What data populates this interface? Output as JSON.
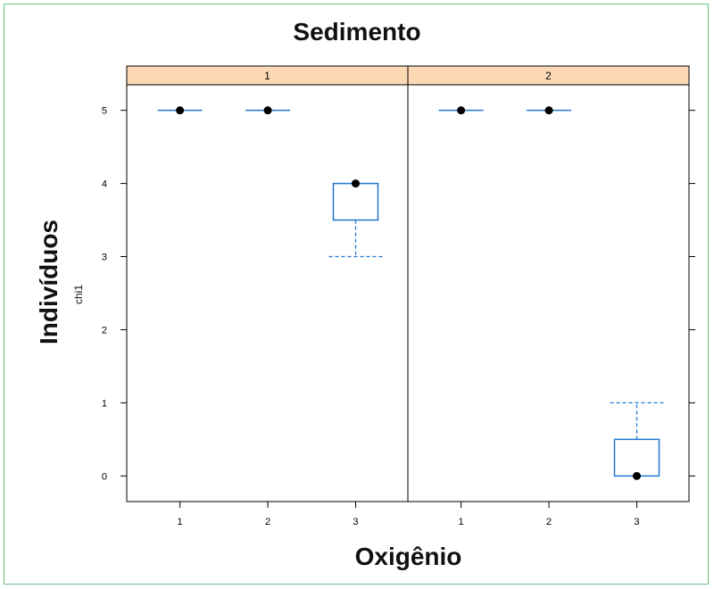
{
  "chart_data": {
    "type": "boxplot",
    "title": "Sedimento",
    "xlabel": "Oxigênio",
    "ylabel": "Indivíduos",
    "yvar": "chi1",
    "ylim": [
      -0.35,
      5.35
    ],
    "yticks": [
      0,
      1,
      2,
      3,
      4,
      5
    ],
    "categories": [
      "1",
      "2",
      "3"
    ],
    "panels": [
      {
        "strip": "1",
        "boxes": [
          {
            "x": "1",
            "min": 5,
            "q1": 5,
            "median": 5,
            "q3": 5,
            "max": 5
          },
          {
            "x": "2",
            "min": 5,
            "q1": 5,
            "median": 5,
            "q3": 5,
            "max": 5
          },
          {
            "x": "3",
            "min": 3,
            "q1": 3.5,
            "median": 4,
            "q3": 4,
            "max": 4
          }
        ]
      },
      {
        "strip": "2",
        "boxes": [
          {
            "x": "1",
            "min": 5,
            "q1": 5,
            "median": 5,
            "q3": 5,
            "max": 5
          },
          {
            "x": "2",
            "min": 5,
            "q1": 5,
            "median": 5,
            "q3": 5,
            "max": 5
          },
          {
            "x": "3",
            "min": 0,
            "q1": 0,
            "median": 0,
            "q3": 0.5,
            "max": 1
          }
        ]
      }
    ],
    "colors": {
      "box": "#1f78d1",
      "strip": "#fcd9b4",
      "median": "#000000",
      "frame_border": "#6cbf84"
    }
  }
}
